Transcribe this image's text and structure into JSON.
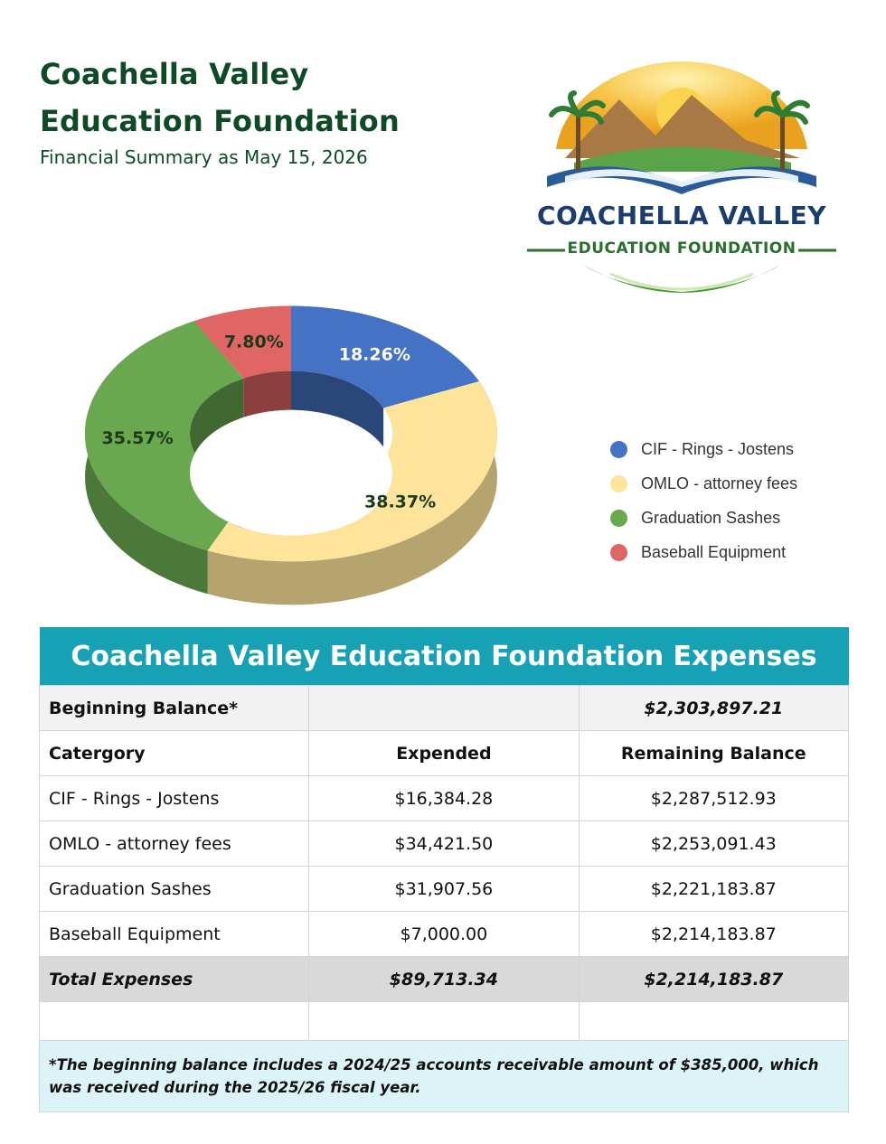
{
  "header": {
    "title": "Coachella Valley Education Foundation",
    "subtitle": "Financial Summary as May 15, 2026"
  },
  "logo": {
    "title": "COACHELLA VALLEY",
    "subtitle": "EDUCATION FOUNDATION"
  },
  "chart_data": {
    "type": "pie",
    "style": "3d-donut",
    "categories": [
      "CIF - Rings - Jostens",
      "OMLO - attorney fees",
      "Graduation Sashes",
      "Baseball Equipment"
    ],
    "values": [
      18.26,
      38.37,
      35.57,
      7.8
    ],
    "data_labels": [
      "18.26%",
      "38.37%",
      "35.57%",
      "7.80%"
    ],
    "colors": [
      "#4472c4",
      "#fde49a",
      "#6aa84f",
      "#e06666"
    ],
    "legend_position": "right"
  },
  "table": {
    "title": "Coachella Valley Education Foundation Expenses",
    "beginning_balance_label": "Beginning Balance*",
    "beginning_balance_value": "$2,303,897.21",
    "columns": [
      "Catergory",
      "Expended",
      "Remaining Balance"
    ],
    "rows": [
      {
        "category": "CIF - Rings - Jostens",
        "expended": "$16,384.28",
        "remaining": "$2,287,512.93"
      },
      {
        "category": "OMLO - attorney fees",
        "expended": "$34,421.50",
        "remaining": "$2,253,091.43"
      },
      {
        "category": "Graduation Sashes",
        "expended": "$31,907.56",
        "remaining": "$2,221,183.87"
      },
      {
        "category": "Baseball Equipment",
        "expended": "$7,000.00",
        "remaining": "$2,214,183.87"
      }
    ],
    "total_label": "Total Expenses",
    "total_expended": "$89,713.34",
    "total_remaining": "$2,214,183.87",
    "note": "*The beginning balance includes a 2024/25 accounts receivable amount of $385,000, which was received during the 2025/26 fiscal year."
  }
}
